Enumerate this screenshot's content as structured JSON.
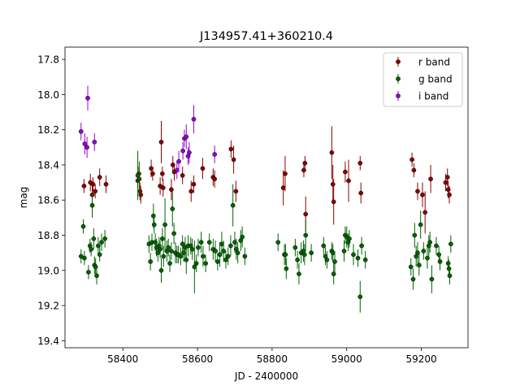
{
  "chart_data": {
    "type": "scatter",
    "title": "J134957.41+360210.4",
    "xlabel": "JD - 2400000",
    "ylabel": "mag",
    "xlim": [
      58245,
      59325
    ],
    "ylim": [
      19.44,
      17.73
    ],
    "x_ticks": [
      58400,
      58600,
      58800,
      59000,
      59200
    ],
    "y_ticks": [
      17.8,
      18.0,
      18.2,
      18.4,
      18.6,
      18.8,
      19.0,
      19.2,
      19.4
    ],
    "x_tick_labels": [
      "58400",
      "58600",
      "58800",
      "59000",
      "59200"
    ],
    "y_tick_labels": [
      "17.8",
      "18.0",
      "18.2",
      "18.4",
      "18.6",
      "18.8",
      "19.0",
      "19.2",
      "19.4"
    ],
    "grid": false,
    "legend_position": "top-right",
    "series": [
      {
        "name": "r band",
        "color": "#8b0000",
        "points": [
          [
            58296,
            18.52,
            0.04
          ],
          [
            58313,
            18.5,
            0.05
          ],
          [
            58318,
            18.57,
            0.06
          ],
          [
            58320,
            18.51,
            0.04
          ],
          [
            58326,
            18.55,
            0.04
          ],
          [
            58338,
            18.47,
            0.05
          ],
          [
            58355,
            18.51,
            0.05
          ],
          [
            58440,
            18.49,
            0.04
          ],
          [
            58443,
            18.45,
            0.04
          ],
          [
            58446,
            18.55,
            0.05
          ],
          [
            58448,
            18.57,
            0.05
          ],
          [
            58476,
            18.42,
            0.05
          ],
          [
            58480,
            18.45,
            0.04
          ],
          [
            58500,
            18.52,
            0.05
          ],
          [
            58503,
            18.27,
            0.12
          ],
          [
            58506,
            18.45,
            0.04
          ],
          [
            58508,
            18.53,
            0.05
          ],
          [
            58530,
            18.54,
            0.06
          ],
          [
            58534,
            18.4,
            0.05
          ],
          [
            58538,
            18.44,
            0.05
          ],
          [
            58560,
            18.46,
            0.05
          ],
          [
            58583,
            18.55,
            0.06
          ],
          [
            58590,
            18.51,
            0.05
          ],
          [
            58614,
            18.42,
            0.06
          ],
          [
            58642,
            18.47,
            0.05
          ],
          [
            58646,
            18.48,
            0.05
          ],
          [
            58690,
            18.31,
            0.05
          ],
          [
            58697,
            18.37,
            0.08
          ],
          [
            58703,
            18.55,
            0.06
          ],
          [
            58830,
            18.53,
            0.1
          ],
          [
            58835,
            18.45,
            0.1
          ],
          [
            58885,
            18.43,
            0.04
          ],
          [
            58888,
            18.39,
            0.04
          ],
          [
            58890,
            18.68,
            0.1
          ],
          [
            58960,
            18.33,
            0.15
          ],
          [
            58963,
            18.51,
            0.11
          ],
          [
            58965,
            18.61,
            0.13
          ],
          [
            58996,
            18.44,
            0.06
          ],
          [
            59005,
            18.49,
            0.12
          ],
          [
            59036,
            18.39,
            0.04
          ],
          [
            59038,
            18.56,
            0.06
          ],
          [
            59175,
            18.37,
            0.04
          ],
          [
            59180,
            18.43,
            0.04
          ],
          [
            59190,
            18.55,
            0.05
          ],
          [
            59203,
            18.57,
            0.07
          ],
          [
            59210,
            18.67,
            0.12
          ],
          [
            59225,
            18.48,
            0.08
          ],
          [
            59265,
            18.5,
            0.05
          ],
          [
            59270,
            18.47,
            0.05
          ],
          [
            59272,
            18.54,
            0.05
          ],
          [
            59275,
            18.57,
            0.05
          ]
        ]
      },
      {
        "name": "g band",
        "color": "#006400",
        "points": [
          [
            58288,
            18.92,
            0.04
          ],
          [
            58294,
            18.75,
            0.04
          ],
          [
            58297,
            18.93,
            0.04
          ],
          [
            58308,
            19.01,
            0.04
          ],
          [
            58312,
            18.86,
            0.04
          ],
          [
            58315,
            18.88,
            0.04
          ],
          [
            58318,
            18.63,
            0.07
          ],
          [
            58322,
            18.82,
            0.06
          ],
          [
            58324,
            18.97,
            0.05
          ],
          [
            58327,
            18.98,
            0.05
          ],
          [
            58330,
            19.03,
            0.05
          ],
          [
            58334,
            18.86,
            0.05
          ],
          [
            58338,
            18.91,
            0.04
          ],
          [
            58343,
            18.84,
            0.05
          ],
          [
            58352,
            18.82,
            0.05
          ],
          [
            58440,
            18.46,
            0.14
          ],
          [
            58444,
            18.48,
            0.1
          ],
          [
            58470,
            18.85,
            0.05
          ],
          [
            58474,
            18.95,
            0.05
          ],
          [
            58478,
            18.84,
            0.05
          ],
          [
            58482,
            18.69,
            0.07
          ],
          [
            58484,
            18.74,
            0.05
          ],
          [
            58487,
            18.84,
            0.05
          ],
          [
            58490,
            18.87,
            0.05
          ],
          [
            58494,
            18.9,
            0.05
          ],
          [
            58497,
            18.86,
            0.05
          ],
          [
            58500,
            18.88,
            0.05
          ],
          [
            58503,
            19.0,
            0.07
          ],
          [
            58506,
            18.82,
            0.06
          ],
          [
            58509,
            18.92,
            0.06
          ],
          [
            58513,
            18.74,
            0.15
          ],
          [
            58518,
            18.89,
            0.06
          ],
          [
            58522,
            18.87,
            0.05
          ],
          [
            58526,
            18.96,
            0.05
          ],
          [
            58530,
            18.89,
            0.05
          ],
          [
            58533,
            18.65,
            0.1
          ],
          [
            58537,
            18.79,
            0.06
          ],
          [
            58541,
            18.9,
            0.06
          ],
          [
            58545,
            18.91,
            0.05
          ],
          [
            58549,
            18.91,
            0.05
          ],
          [
            58555,
            18.92,
            0.05
          ],
          [
            58560,
            18.85,
            0.05
          ],
          [
            58563,
            18.9,
            0.05
          ],
          [
            58567,
            18.87,
            0.06
          ],
          [
            58570,
            18.94,
            0.08
          ],
          [
            58575,
            18.86,
            0.06
          ],
          [
            58582,
            18.86,
            0.05
          ],
          [
            58586,
            18.88,
            0.06
          ],
          [
            58592,
            18.98,
            0.15
          ],
          [
            58597,
            18.96,
            0.05
          ],
          [
            58602,
            18.87,
            0.05
          ],
          [
            58610,
            18.84,
            0.06
          ],
          [
            58615,
            18.92,
            0.06
          ],
          [
            58622,
            18.96,
            0.05
          ],
          [
            58632,
            18.84,
            0.05
          ],
          [
            58642,
            18.88,
            0.06
          ],
          [
            58648,
            18.89,
            0.06
          ],
          [
            58654,
            18.95,
            0.05
          ],
          [
            58660,
            18.91,
            0.07
          ],
          [
            58665,
            18.85,
            0.07
          ],
          [
            58670,
            18.89,
            0.06
          ],
          [
            58676,
            18.94,
            0.05
          ],
          [
            58682,
            18.92,
            0.05
          ],
          [
            58689,
            18.86,
            0.06
          ],
          [
            58695,
            18.63,
            0.12
          ],
          [
            58700,
            18.84,
            0.06
          ],
          [
            58704,
            18.88,
            0.06
          ],
          [
            58708,
            18.9,
            0.06
          ],
          [
            58716,
            18.83,
            0.06
          ],
          [
            58720,
            18.81,
            0.06
          ],
          [
            58727,
            18.92,
            0.05
          ],
          [
            58816,
            18.84,
            0.05
          ],
          [
            58833,
            18.91,
            0.06
          ],
          [
            58836,
            18.91,
            0.06
          ],
          [
            58838,
            18.99,
            0.06
          ],
          [
            58862,
            18.87,
            0.05
          ],
          [
            58868,
            18.94,
            0.05
          ],
          [
            58872,
            19.02,
            0.06
          ],
          [
            58878,
            18.9,
            0.06
          ],
          [
            58884,
            18.89,
            0.06
          ],
          [
            58887,
            18.91,
            0.06
          ],
          [
            58890,
            18.8,
            0.09
          ],
          [
            58905,
            18.9,
            0.05
          ],
          [
            58938,
            18.86,
            0.05
          ],
          [
            58943,
            18.92,
            0.05
          ],
          [
            58947,
            18.94,
            0.05
          ],
          [
            58960,
            18.89,
            0.05
          ],
          [
            58963,
            18.9,
            0.05
          ],
          [
            58965,
            19.02,
            0.06
          ],
          [
            58968,
            18.95,
            0.06
          ],
          [
            58993,
            18.89,
            0.06
          ],
          [
            58996,
            18.8,
            0.05
          ],
          [
            59000,
            18.81,
            0.06
          ],
          [
            59004,
            18.84,
            0.05
          ],
          [
            59007,
            18.82,
            0.05
          ],
          [
            59018,
            18.91,
            0.06
          ],
          [
            59030,
            18.93,
            0.05
          ],
          [
            59036,
            19.15,
            0.09
          ],
          [
            59040,
            18.86,
            0.05
          ],
          [
            59050,
            18.94,
            0.05
          ],
          [
            59172,
            18.98,
            0.05
          ],
          [
            59178,
            19.05,
            0.06
          ],
          [
            59182,
            18.8,
            0.07
          ],
          [
            59186,
            18.92,
            0.06
          ],
          [
            59190,
            18.9,
            0.06
          ],
          [
            59194,
            18.97,
            0.06
          ],
          [
            59198,
            18.74,
            0.08
          ],
          [
            59206,
            18.89,
            0.05
          ],
          [
            59216,
            18.93,
            0.06
          ],
          [
            59220,
            18.86,
            0.06
          ],
          [
            59223,
            18.84,
            0.06
          ],
          [
            59228,
            19.05,
            0.08
          ],
          [
            59240,
            18.86,
            0.05
          ],
          [
            59247,
            18.91,
            0.05
          ],
          [
            59250,
            18.95,
            0.05
          ],
          [
            59272,
            18.96,
            0.04
          ],
          [
            59274,
            18.99,
            0.05
          ],
          [
            59276,
            19.03,
            0.05
          ],
          [
            59279,
            18.85,
            0.05
          ]
        ]
      },
      {
        "name": "i band",
        "color": "#9400d3",
        "points": [
          [
            58288,
            18.21,
            0.05
          ],
          [
            58298,
            18.28,
            0.06
          ],
          [
            58304,
            18.3,
            0.06
          ],
          [
            58306,
            18.02,
            0.07
          ],
          [
            58324,
            18.27,
            0.05
          ],
          [
            58545,
            18.43,
            0.05
          ],
          [
            58550,
            18.38,
            0.06
          ],
          [
            58561,
            18.32,
            0.05
          ],
          [
            58565,
            18.25,
            0.05
          ],
          [
            58570,
            18.24,
            0.07
          ],
          [
            58575,
            18.35,
            0.05
          ],
          [
            58578,
            18.33,
            0.06
          ],
          [
            58590,
            18.14,
            0.08
          ],
          [
            58646,
            18.34,
            0.05
          ]
        ]
      }
    ]
  }
}
